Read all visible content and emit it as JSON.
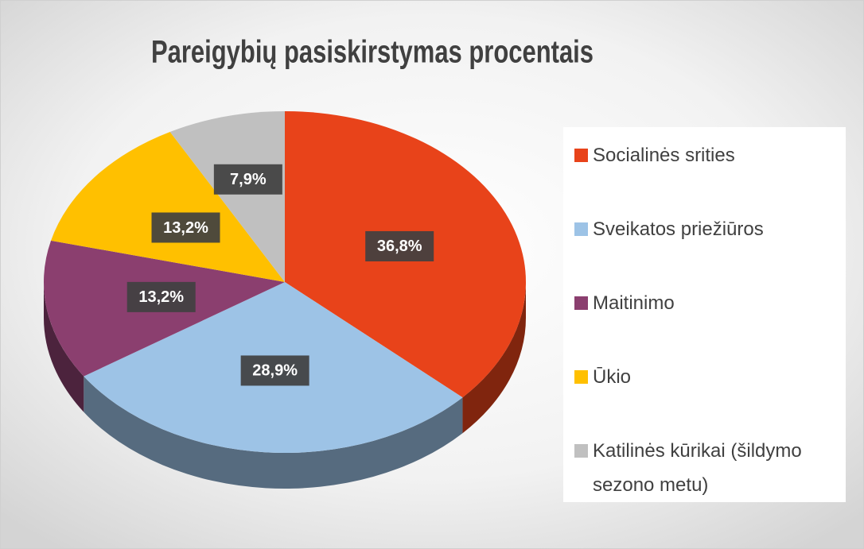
{
  "chart_data": {
    "type": "pie",
    "title": "Pareigybių pasiskirstymas procentais",
    "categories": [
      "Socialinės srities",
      "Sveikatos priežiūros",
      "Maitinimo",
      "Ūkio",
      "Katilinės kūrikai (šildymo sezono metu)"
    ],
    "values": [
      36.8,
      28.9,
      13.2,
      13.2,
      7.9
    ],
    "value_labels": [
      "36,8%",
      "28,9%",
      "13,2%",
      "13,2%",
      "7,9%"
    ],
    "colors": [
      "#e8431a",
      "#9dc3e6",
      "#8b3f6f",
      "#ffc000",
      "#c0c0c0"
    ],
    "legend": "right"
  }
}
